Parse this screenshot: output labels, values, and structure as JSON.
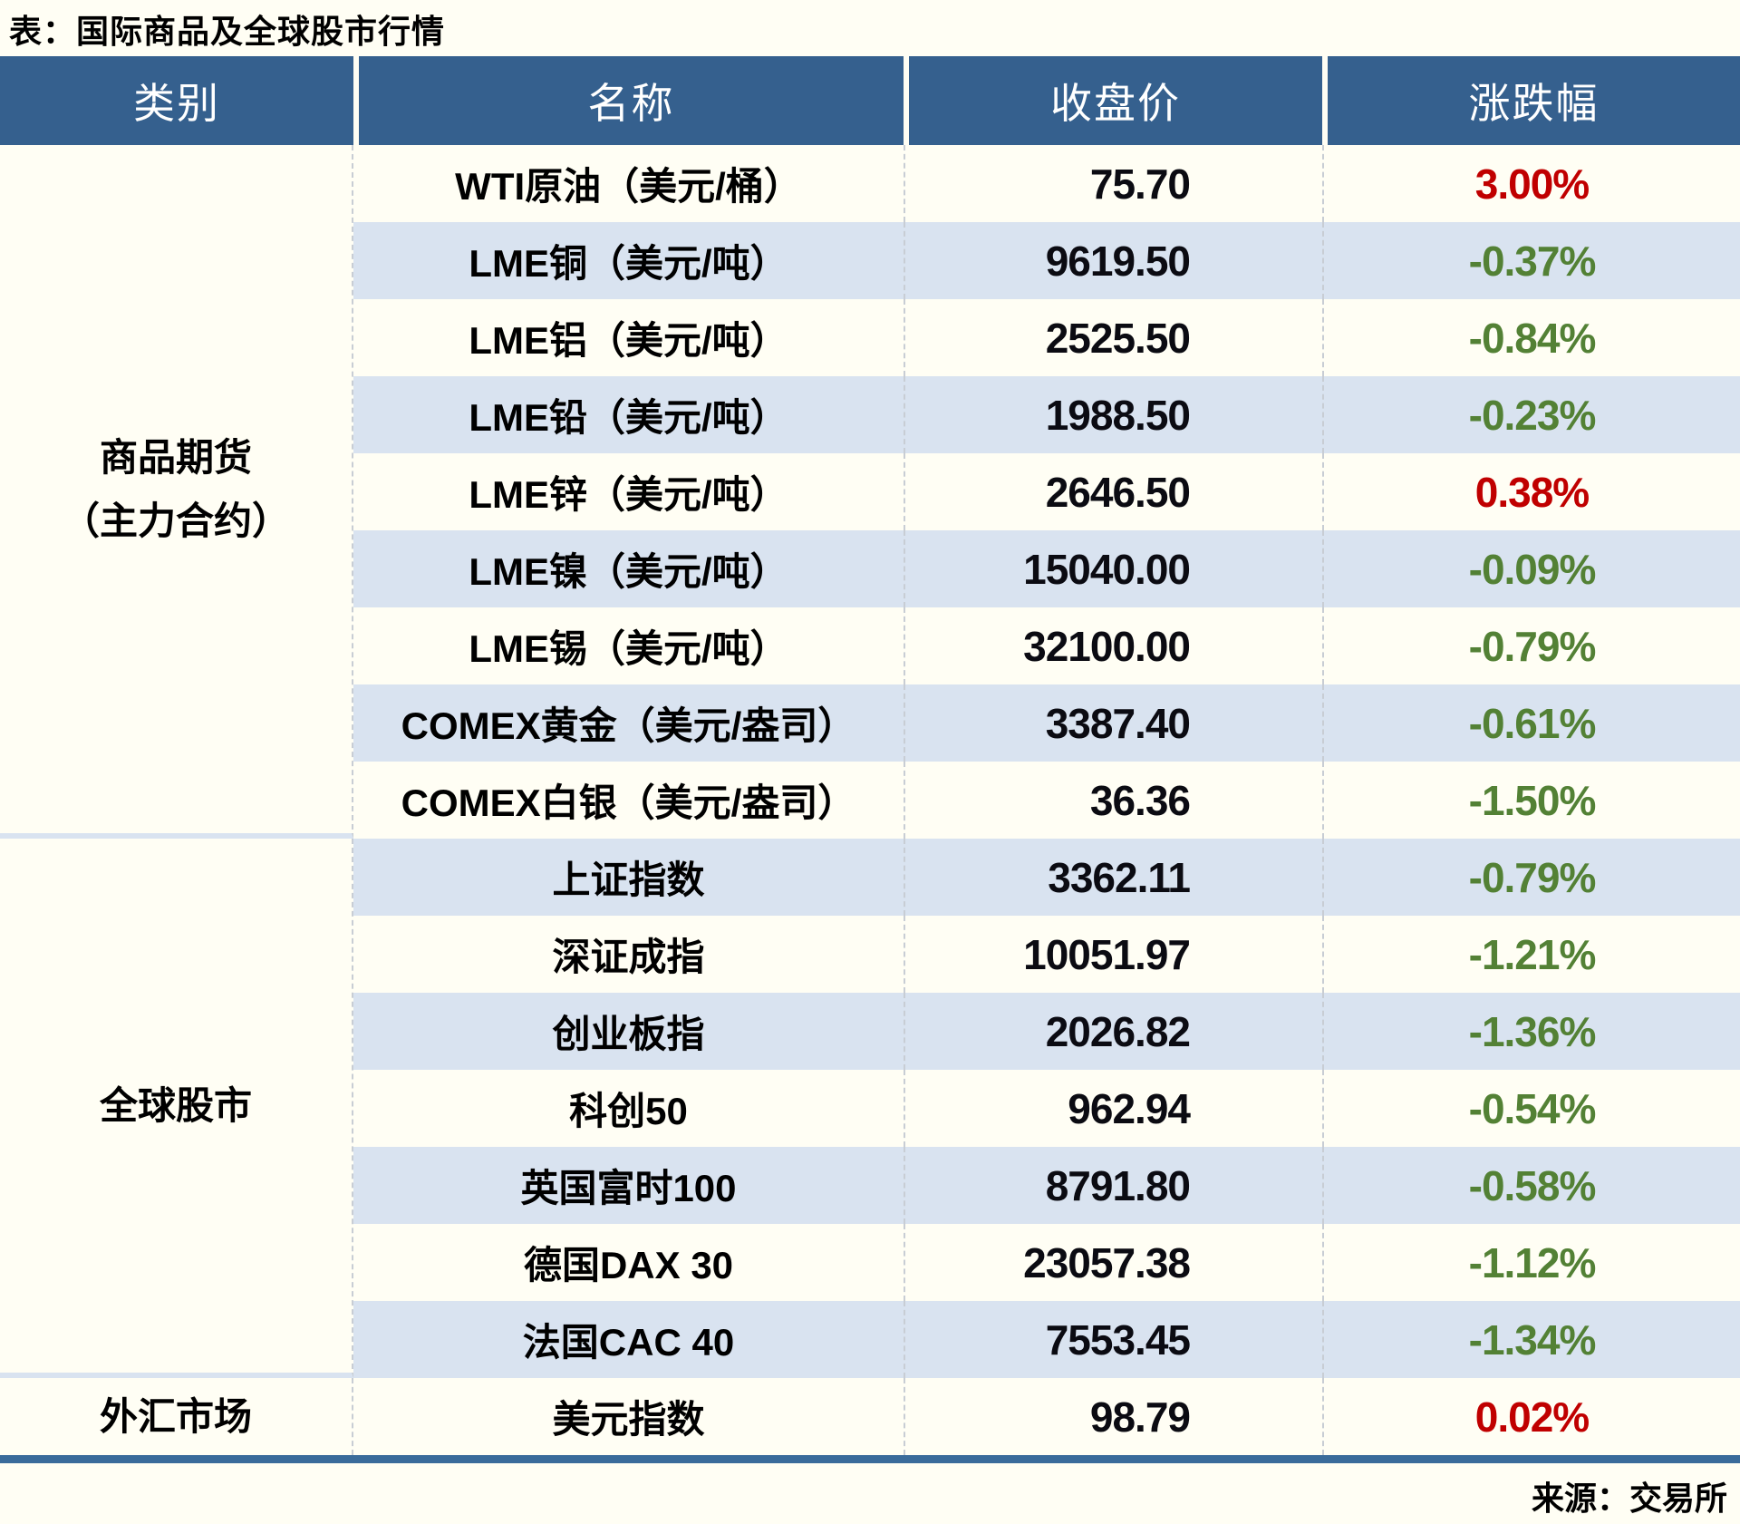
{
  "chart_data": {
    "type": "table",
    "title": "表：国际商品及全球股市行情",
    "columns": [
      "类别",
      "名称",
      "收盘价",
      "涨跌幅"
    ],
    "source": "来源：交易所",
    "colors": {
      "header_bg": "#35608E",
      "row_stripe": "#D9E3F0",
      "up_red": "#C00000",
      "down_green": "#538135",
      "page_bg": "#FFFEF4",
      "bottom_rule": "#3A6B9B"
    },
    "sections": [
      {
        "label_lines": [
          "商品期货",
          "（主力合约）"
        ],
        "row_count": 9
      },
      {
        "label_lines": [
          "全球股市"
        ],
        "row_count": 7
      },
      {
        "label_lines": [
          "外汇市场"
        ],
        "row_count": 1
      }
    ],
    "rows": [
      {
        "category": "商品期货（主力合约）",
        "name": "WTI原油（美元/桶）",
        "close": "75.70",
        "change": "3.00%",
        "direction": "up"
      },
      {
        "category": "商品期货（主力合约）",
        "name": "LME铜（美元/吨）",
        "close": "9619.50",
        "change": "-0.37%",
        "direction": "down"
      },
      {
        "category": "商品期货（主力合约）",
        "name": "LME铝（美元/吨）",
        "close": "2525.50",
        "change": "-0.84%",
        "direction": "down"
      },
      {
        "category": "商品期货（主力合约）",
        "name": "LME铅（美元/吨）",
        "close": "1988.50",
        "change": "-0.23%",
        "direction": "down"
      },
      {
        "category": "商品期货（主力合约）",
        "name": "LME锌（美元/吨）",
        "close": "2646.50",
        "change": "0.38%",
        "direction": "up"
      },
      {
        "category": "商品期货（主力合约）",
        "name": "LME镍（美元/吨）",
        "close": "15040.00",
        "change": "-0.09%",
        "direction": "down"
      },
      {
        "category": "商品期货（主力合约）",
        "name": "LME锡（美元/吨）",
        "close": "32100.00",
        "change": "-0.79%",
        "direction": "down"
      },
      {
        "category": "商品期货（主力合约）",
        "name": "COMEX黄金（美元/盎司）",
        "close": "3387.40",
        "change": "-0.61%",
        "direction": "down"
      },
      {
        "category": "商品期货（主力合约）",
        "name": "COMEX白银（美元/盎司）",
        "close": "36.36",
        "change": "-1.50%",
        "direction": "down"
      },
      {
        "category": "全球股市",
        "name": "上证指数",
        "close": "3362.11",
        "change": "-0.79%",
        "direction": "down"
      },
      {
        "category": "全球股市",
        "name": "深证成指",
        "close": "10051.97",
        "change": "-1.21%",
        "direction": "down"
      },
      {
        "category": "全球股市",
        "name": "创业板指",
        "close": "2026.82",
        "change": "-1.36%",
        "direction": "down"
      },
      {
        "category": "全球股市",
        "name": "科创50",
        "close": "962.94",
        "change": "-0.54%",
        "direction": "down"
      },
      {
        "category": "全球股市",
        "name": "英国富时100",
        "close": "8791.80",
        "change": "-0.58%",
        "direction": "down"
      },
      {
        "category": "全球股市",
        "name": "德国DAX 30",
        "close": "23057.38",
        "change": "-1.12%",
        "direction": "down"
      },
      {
        "category": "全球股市",
        "name": "法国CAC 40",
        "close": "7553.45",
        "change": "-1.34%",
        "direction": "down"
      },
      {
        "category": "外汇市场",
        "name": "美元指数",
        "close": "98.79",
        "change": "0.02%",
        "direction": "up"
      }
    ]
  }
}
